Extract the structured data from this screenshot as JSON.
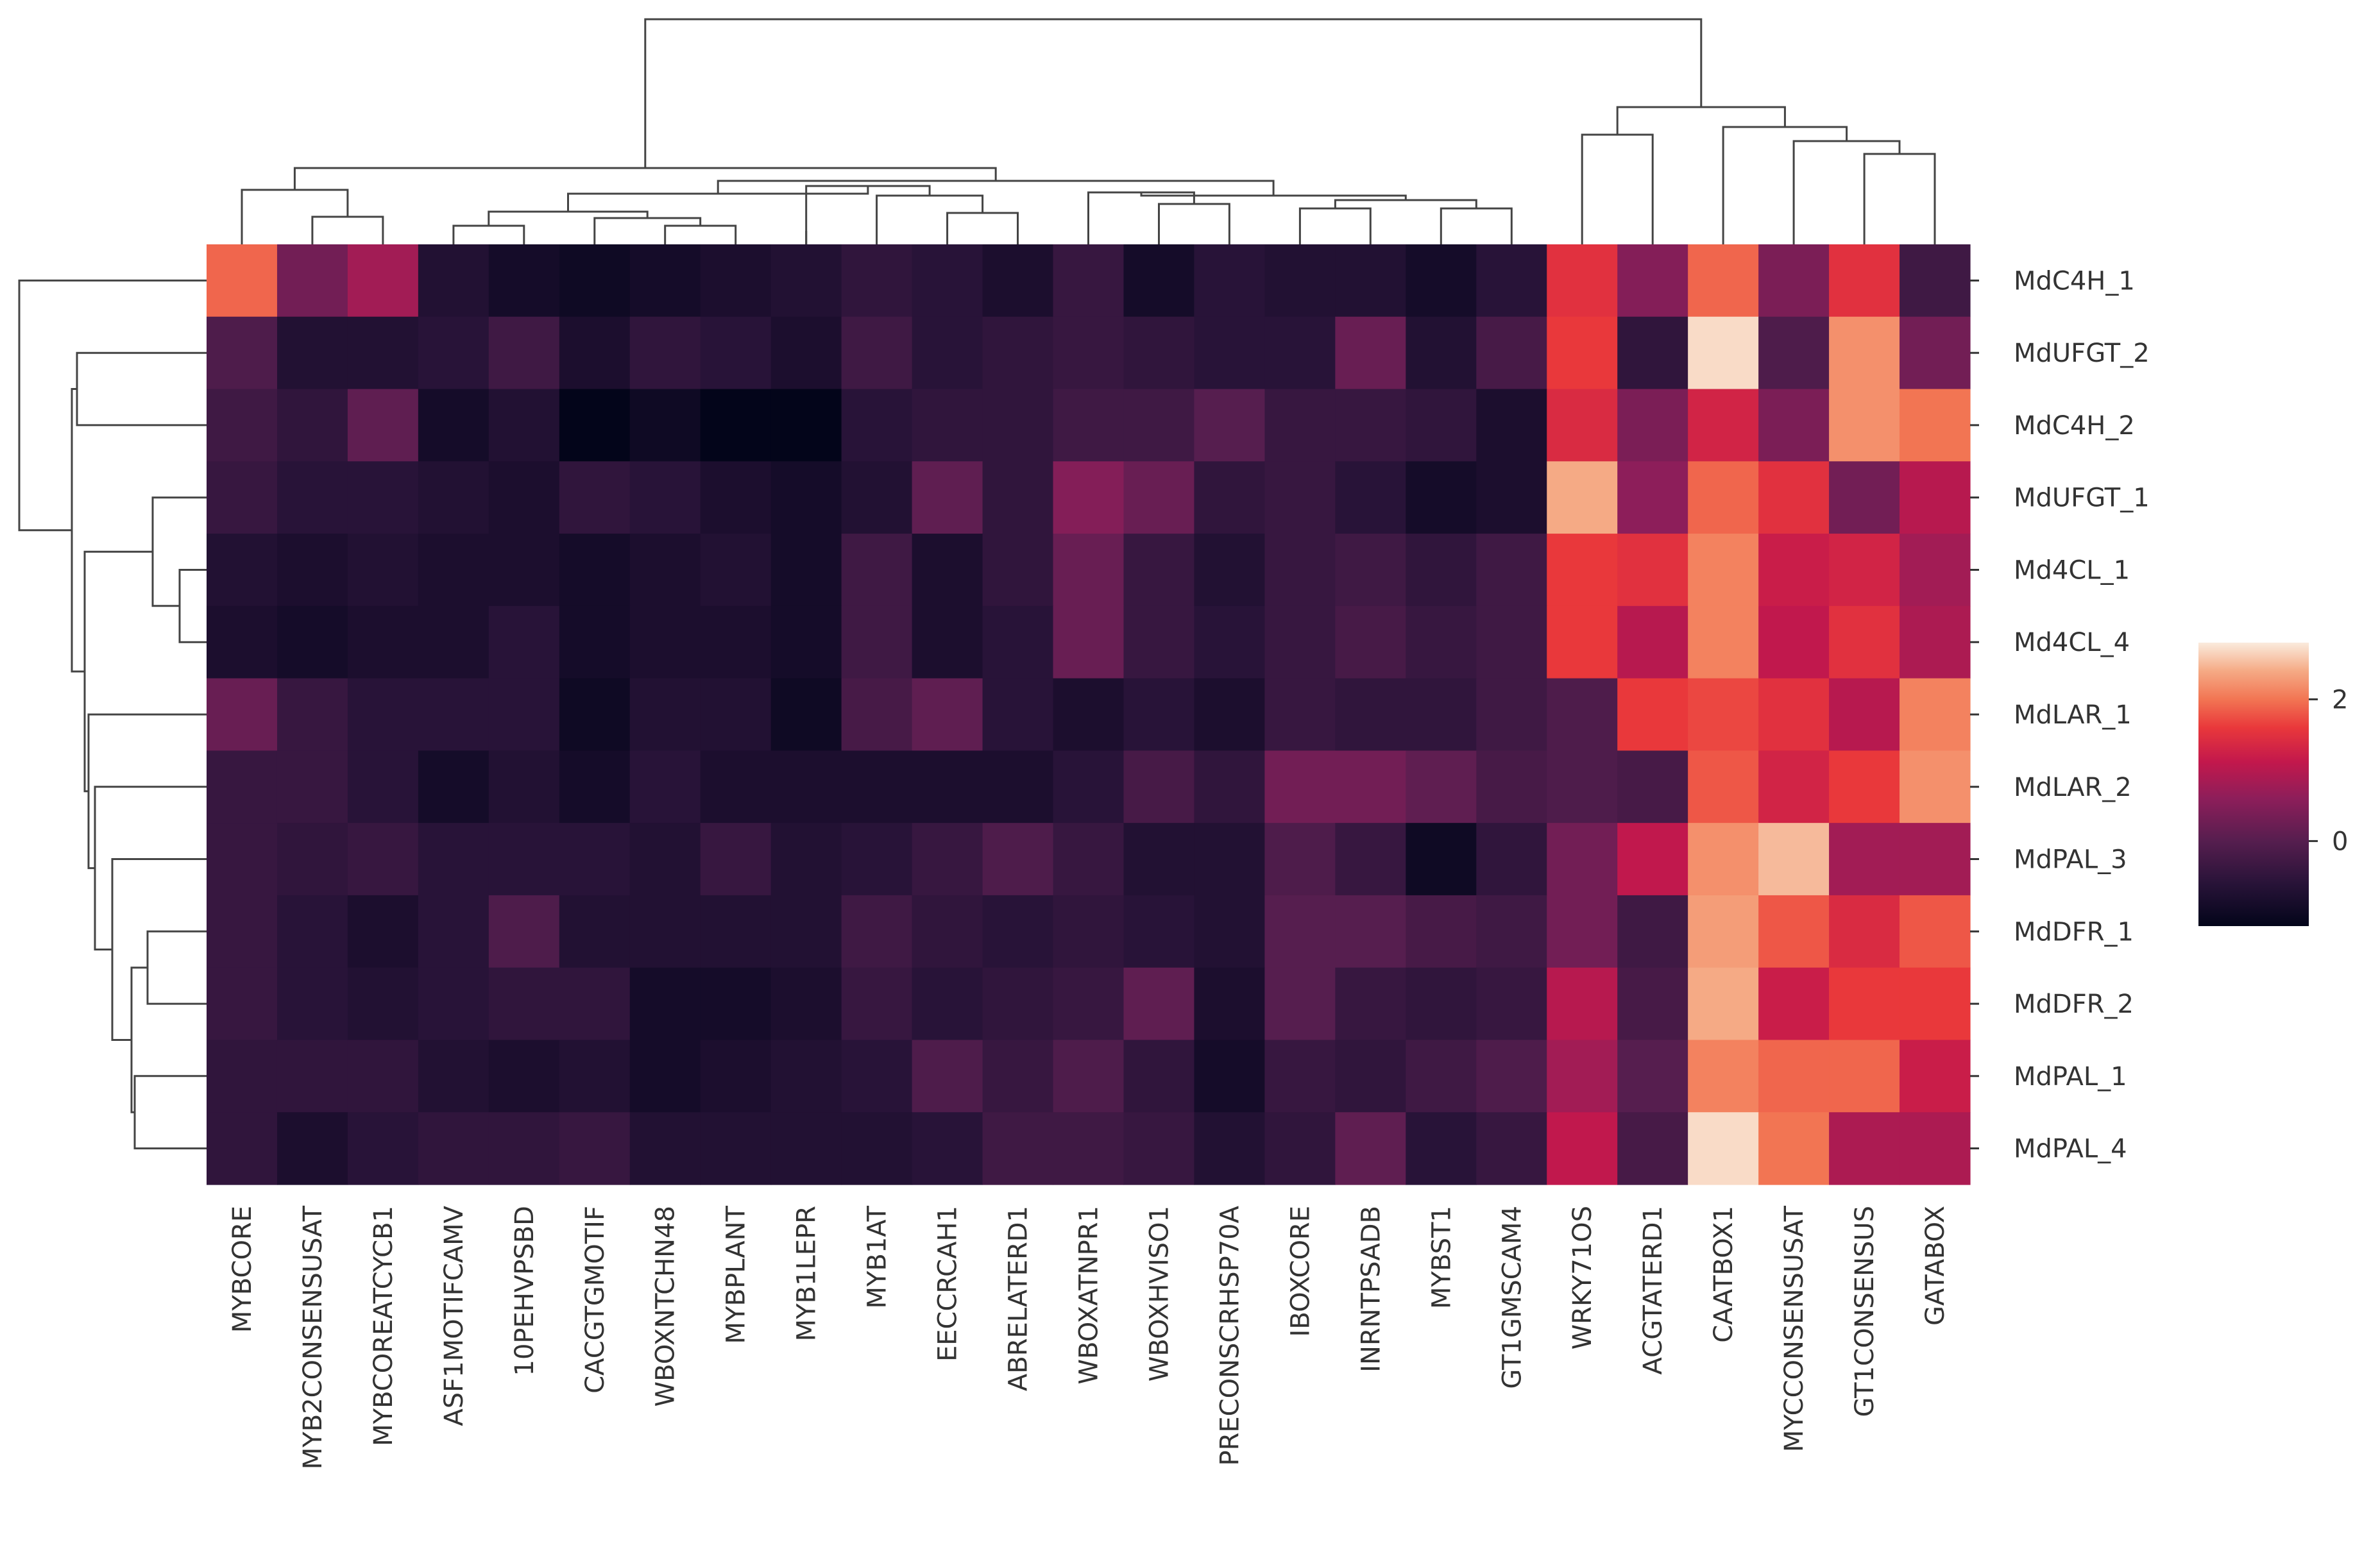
{
  "chart_data": {
    "type": "heatmap",
    "subtype": "clustermap",
    "title": "",
    "columns": [
      "MYBCORE",
      "MYB2CONSENSUSAT",
      "MYBCOREATCYCB1",
      "ASF1MOTIFCAMV",
      "10PEHVPSBD",
      "CACGTGMOTIF",
      "WBOXNTCHN48",
      "MYBPLANT",
      "MYB1LEPR",
      "MYB1AT",
      "EECCRCAH1",
      "ABRELATERD1",
      "WBOXATNPR1",
      "WBOXHVISO1",
      "PRECONSCRHSP70A",
      "IBOXCORE",
      "INRNTPSADB",
      "MYBST1",
      "GT1GMSCAM4",
      "WRKY71OS",
      "ACGTATERD1",
      "CAATBOX1",
      "MYCCONSENSUSAT",
      "GT1CONSENSUS",
      "GATABOX"
    ],
    "rows": [
      "MdC4H_1",
      "MdUFGT_2",
      "MdC4H_2",
      "MdUFGT_1",
      "Md4CL_1",
      "Md4CL_4",
      "MdLAR_1",
      "MdLAR_2",
      "MdPAL_3",
      "MdDFR_1",
      "MdDFR_2",
      "MdPAL_1",
      "MdPAL_4"
    ],
    "values": [
      [
        1.9,
        0.3,
        0.8,
        -0.7,
        -0.9,
        -1.0,
        -0.9,
        -0.8,
        -0.7,
        -0.5,
        -0.6,
        -0.8,
        -0.4,
        -0.9,
        -0.6,
        -0.7,
        -0.7,
        -0.9,
        -0.6,
        1.5,
        0.5,
        1.9,
        0.4,
        1.5,
        -0.3
      ],
      [
        -0.1,
        -0.7,
        -0.7,
        -0.6,
        -0.3,
        -0.8,
        -0.5,
        -0.6,
        -0.8,
        -0.3,
        -0.6,
        -0.5,
        -0.4,
        -0.5,
        -0.6,
        -0.6,
        0.2,
        -0.7,
        -0.2,
        1.6,
        -0.5,
        2.7,
        -0.1,
        2.2,
        0.3
      ],
      [
        -0.3,
        -0.5,
        0.1,
        -0.9,
        -0.7,
        -1.2,
        -1.0,
        -1.2,
        -1.2,
        -0.6,
        -0.5,
        -0.5,
        -0.3,
        -0.3,
        0.0,
        -0.4,
        -0.4,
        -0.5,
        -0.8,
        1.4,
        0.4,
        1.3,
        0.4,
        2.2,
        2.0
      ],
      [
        -0.4,
        -0.6,
        -0.6,
        -0.7,
        -0.8,
        -0.5,
        -0.6,
        -0.8,
        -0.9,
        -0.7,
        0.1,
        -0.5,
        0.5,
        0.2,
        -0.5,
        -0.4,
        -0.6,
        -0.9,
        -0.8,
        2.4,
        0.6,
        1.9,
        1.5,
        0.3,
        1.0
      ],
      [
        -0.7,
        -0.8,
        -0.7,
        -0.8,
        -0.8,
        -0.9,
        -0.8,
        -0.7,
        -0.9,
        -0.3,
        -0.8,
        -0.5,
        0.2,
        -0.4,
        -0.7,
        -0.4,
        -0.3,
        -0.5,
        -0.3,
        1.6,
        1.5,
        2.1,
        1.2,
        1.3,
        0.8
      ],
      [
        -0.8,
        -0.9,
        -0.8,
        -0.8,
        -0.6,
        -0.9,
        -0.8,
        -0.8,
        -0.9,
        -0.3,
        -0.8,
        -0.6,
        0.2,
        -0.4,
        -0.6,
        -0.4,
        -0.2,
        -0.4,
        -0.3,
        1.6,
        1.0,
        2.1,
        1.1,
        1.5,
        0.9
      ],
      [
        0.2,
        -0.4,
        -0.6,
        -0.6,
        -0.6,
        -1.0,
        -0.7,
        -0.7,
        -1.0,
        -0.2,
        0.1,
        -0.6,
        -0.8,
        -0.6,
        -0.8,
        -0.4,
        -0.5,
        -0.5,
        -0.3,
        -0.1,
        1.6,
        1.7,
        1.5,
        1.0,
        2.1
      ],
      [
        -0.4,
        -0.4,
        -0.6,
        -0.9,
        -0.7,
        -0.9,
        -0.6,
        -0.8,
        -0.8,
        -0.8,
        -0.8,
        -0.8,
        -0.6,
        -0.2,
        -0.5,
        0.3,
        0.3,
        0.1,
        -0.2,
        -0.1,
        -0.2,
        1.8,
        1.3,
        1.6,
        2.2
      ],
      [
        -0.4,
        -0.5,
        -0.4,
        -0.6,
        -0.6,
        -0.6,
        -0.7,
        -0.4,
        -0.7,
        -0.6,
        -0.4,
        -0.1,
        -0.4,
        -0.7,
        -0.7,
        -0.1,
        -0.4,
        -1.0,
        -0.5,
        0.3,
        1.1,
        2.2,
        2.5,
        0.8,
        0.8
      ],
      [
        -0.4,
        -0.6,
        -0.8,
        -0.6,
        -0.1,
        -0.7,
        -0.7,
        -0.7,
        -0.7,
        -0.3,
        -0.5,
        -0.6,
        -0.5,
        -0.6,
        -0.7,
        0.0,
        0.0,
        -0.2,
        -0.3,
        0.3,
        -0.3,
        2.3,
        1.8,
        1.4,
        1.8
      ],
      [
        -0.4,
        -0.6,
        -0.7,
        -0.6,
        -0.5,
        -0.5,
        -0.9,
        -0.9,
        -0.8,
        -0.4,
        -0.6,
        -0.5,
        -0.4,
        0.1,
        -0.8,
        0.0,
        -0.4,
        -0.5,
        -0.4,
        1.0,
        -0.2,
        2.4,
        1.2,
        1.6,
        1.6
      ],
      [
        -0.5,
        -0.5,
        -0.5,
        -0.7,
        -0.8,
        -0.7,
        -0.9,
        -0.8,
        -0.7,
        -0.6,
        -0.1,
        -0.4,
        -0.1,
        -0.5,
        -0.9,
        -0.4,
        -0.5,
        -0.3,
        -0.1,
        0.8,
        0.0,
        2.1,
        1.9,
        1.9,
        1.2
      ],
      [
        -0.5,
        -0.8,
        -0.6,
        -0.5,
        -0.5,
        -0.4,
        -0.7,
        -0.7,
        -0.7,
        -0.7,
        -0.6,
        -0.3,
        -0.3,
        -0.4,
        -0.7,
        -0.5,
        0.1,
        -0.6,
        -0.4,
        1.1,
        -0.2,
        2.7,
        2.0,
        0.9,
        0.9
      ]
    ],
    "colorbar": {
      "colormap": "rocket",
      "vmin": -1.2,
      "vmax": 2.8,
      "ticks": [
        0,
        2
      ],
      "tick_labels": [
        "0",
        "2"
      ]
    },
    "xlabel": "",
    "ylabel": "",
    "grid": false,
    "legend": "colorbar at right"
  }
}
